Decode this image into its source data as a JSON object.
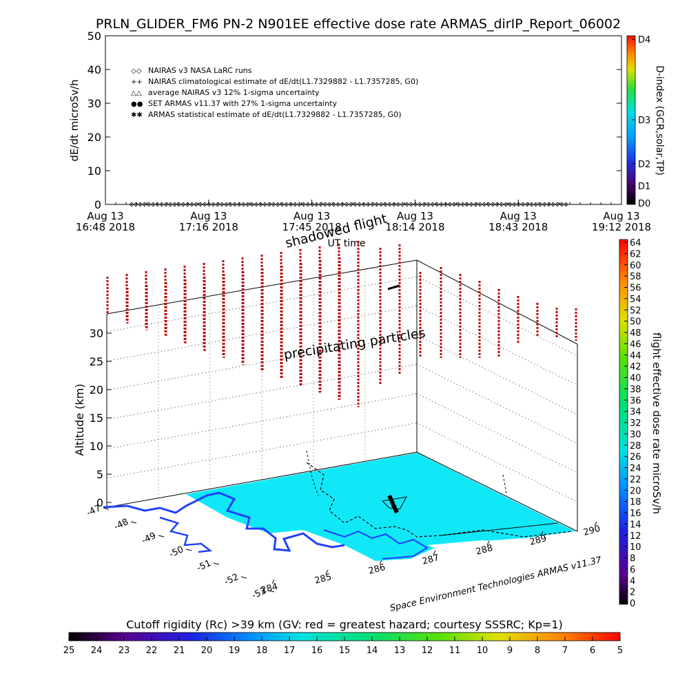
{
  "title": "PRLN_GLIDER_FM6 PN-2 N901EE effective dose rate ARMAS_dirIP_Report_06002",
  "credit": "Space Environment Technologies ARMAS v11.37",
  "top_panel": {
    "ylabel": "dE/dt microSv/h",
    "xlabel": "UT time",
    "yticks": [
      "50",
      "40",
      "30",
      "20",
      "10",
      "0"
    ],
    "xticks": [
      {
        "line1": "Aug 13",
        "line2": "16:48 2018"
      },
      {
        "line1": "Aug 13",
        "line2": "17:16 2018"
      },
      {
        "line1": "Aug 13",
        "line2": "17:45 2018"
      },
      {
        "line1": "Aug 13",
        "line2": "18:14 2018"
      },
      {
        "line1": "Aug 13",
        "line2": "18:43 2018"
      },
      {
        "line1": "Aug 13",
        "line2": "19:12 2018"
      }
    ],
    "legend": [
      {
        "symbol": "◇◇",
        "text": "NAIRAS v3 NASA LaRC runs"
      },
      {
        "symbol": "++",
        "text": "NAIRAS climatological estimate of dE/dt(L1.7329882 - L1.7357285, G0)"
      },
      {
        "symbol": "△△",
        "text": "average NAIRAS v3 12% 1-sigma uncertainty"
      },
      {
        "symbol": "●●",
        "text": "SET ARMAS v11.37 with 27% 1-sigma uncertainty"
      },
      {
        "symbol": "✱✱",
        "text": "ARMAS statistical estimate of dE/dt(L1.7329882 - L1.7357285, G0)"
      }
    ],
    "colorbar_label": "D-index (GCR,solar,TP)",
    "colorbar_ticks": [
      "D4",
      "D3",
      "D2",
      "D1",
      "D0"
    ]
  },
  "bottom_panel": {
    "zlabel": "Altitude (km)",
    "zticks": [
      "0",
      "5",
      "10",
      "15",
      "20",
      "25",
      "30"
    ],
    "lat_ticks": [
      "-47",
      "-48",
      "-49",
      "-50",
      "-51",
      "-52",
      "-53"
    ],
    "lon_ticks": [
      "284",
      "285",
      "286",
      "287",
      "288",
      "289",
      "290"
    ],
    "annotation_shadowed": "shadowed flight",
    "annotation_precip": "precipitating particles",
    "colorbar_label": "flight effective dose rate microSv/h",
    "colorbar_ticks": [
      "64",
      "62",
      "60",
      "58",
      "56",
      "54",
      "52",
      "50",
      "48",
      "46",
      "44",
      "42",
      "40",
      "38",
      "36",
      "34",
      "32",
      "30",
      "28",
      "26",
      "24",
      "22",
      "20",
      "18",
      "16",
      "14",
      "12",
      "10",
      "8",
      "6",
      "4",
      "2",
      "0"
    ]
  },
  "bottom_colorbar": {
    "label": "Cutoff rigidity (Rc) >39 km (GV: red = greatest hazard; courtesy SSSRC; Kp=1)",
    "ticks": [
      "25",
      "24",
      "23",
      "22",
      "21",
      "20",
      "19",
      "18",
      "17",
      "16",
      "15",
      "14",
      "13",
      "12",
      "11",
      "10",
      "9",
      "8",
      "7",
      "6",
      "5"
    ]
  },
  "chart_data": [
    {
      "type": "scatter",
      "title": "PRLN_GLIDER_FM6 PN-2 N901EE effective dose rate ARMAS_dirIP_Report_06002",
      "xlabel": "UT time",
      "ylabel": "dE/dt microSv/h",
      "ylim": [
        0,
        50
      ],
      "x_range": [
        "2018-08-13 16:48",
        "2018-08-13 19:12"
      ],
      "series": [
        {
          "name": "NAIRAS v3 NASA LaRC runs",
          "x_range": [
            "2018-08-13 16:48",
            "2018-08-13 18:50"
          ],
          "y": 0
        },
        {
          "name": "NAIRAS climatological estimate of dE/dt(L1.7329882 - L1.7357285, G0)",
          "x_range": [
            "2018-08-13 16:48",
            "2018-08-13 18:50"
          ],
          "y": 0
        },
        {
          "name": "average NAIRAS v3 12% 1-sigma uncertainty",
          "x_range": [
            "2018-08-13 16:48",
            "2018-08-13 18:50"
          ],
          "y": 0
        },
        {
          "name": "SET ARMAS v11.37 with 27% 1-sigma uncertainty",
          "x_range": [
            "2018-08-13 16:48",
            "2018-08-13 18:50"
          ],
          "y": 0
        },
        {
          "name": "ARMAS statistical estimate of dE/dt(L1.7329882 - L1.7357285, G0)",
          "x_range": [
            "2018-08-13 16:48",
            "2018-08-13 18:50"
          ],
          "y": 0
        }
      ],
      "colorbar": {
        "label": "D-index (GCR,solar,TP)",
        "levels": [
          "D0",
          "D1",
          "D2",
          "D3",
          "D4"
        ]
      }
    },
    {
      "type": "scatter",
      "zlabel": "Altitude (km)",
      "zlim": [
        0,
        33
      ],
      "lat_range": [
        -53,
        -47
      ],
      "lon_range": [
        284,
        290
      ],
      "annotations": [
        "shadowed flight",
        "precipitating particles"
      ],
      "colorbar": {
        "label": "flight effective dose rate microSv/h",
        "range": [
          0,
          64
        ]
      },
      "rigidity_colorbar": {
        "label": "Cutoff rigidity (Rc) >39 km (GV: red = greatest hazard; courtesy SSSRC; Kp=1)",
        "range": [
          25,
          5
        ]
      }
    }
  ]
}
